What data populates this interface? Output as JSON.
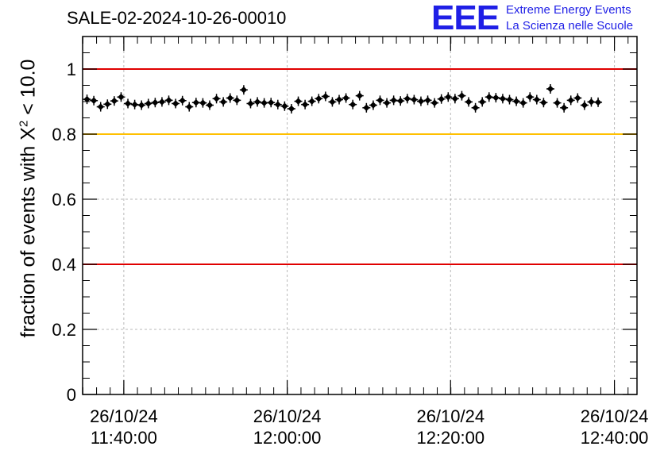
{
  "header": {
    "title": "SALE-02-2024-10-26-00010",
    "logo_acronym": "EEE",
    "logo_line1": "Extreme Energy Events",
    "logo_line2": "La Scienza nelle Scuole"
  },
  "axis": {
    "ylabel_main": "fraction of events with X",
    "ylabel_sup": "2",
    "ylabel_tail": " < 10.0"
  },
  "colors": {
    "red_line": "#e00000",
    "yellow_line": "#ffc000",
    "logo": "#1f1fe6",
    "points": "#000000"
  },
  "chart_data": {
    "type": "scatter",
    "title": "SALE-02-2024-10-26-00010",
    "ylabel": "fraction of events with X^2 < 10.0",
    "ylim": [
      0,
      1.1
    ],
    "xlim_minutes": [
      11.583,
      12.713
    ],
    "yticks": [
      0,
      0.2,
      0.4,
      0.6,
      0.8,
      1
    ],
    "ytick_labels": [
      "0",
      "0.2",
      "0.4",
      "0.6",
      "0.8",
      "1"
    ],
    "xticks": [
      {
        "t": 11.667,
        "date": "26/10/24",
        "time": "11:40:00"
      },
      {
        "t": 12.0,
        "date": "26/10/24",
        "time": "12:00:00"
      },
      {
        "t": 12.333,
        "date": "26/10/24",
        "time": "12:20:00"
      },
      {
        "t": 12.667,
        "date": "26/10/24",
        "time": "12:40:00"
      }
    ],
    "grid": true,
    "reference_lines": [
      {
        "y": 1.0,
        "color": "red"
      },
      {
        "y": 0.8,
        "color": "yellow"
      },
      {
        "y": 0.4,
        "color": "red"
      }
    ],
    "points_x_start": 11.592,
    "points_x_step": 0.01389,
    "points_y": [
      0.907,
      0.903,
      0.884,
      0.892,
      0.902,
      0.914,
      0.894,
      0.891,
      0.889,
      0.894,
      0.897,
      0.899,
      0.904,
      0.894,
      0.903,
      0.884,
      0.897,
      0.896,
      0.889,
      0.909,
      0.899,
      0.911,
      0.904,
      0.936,
      0.894,
      0.899,
      0.896,
      0.897,
      0.891,
      0.886,
      0.878,
      0.901,
      0.891,
      0.901,
      0.909,
      0.916,
      0.899,
      0.906,
      0.911,
      0.891,
      0.918,
      0.881,
      0.889,
      0.904,
      0.896,
      0.904,
      0.902,
      0.909,
      0.906,
      0.901,
      0.904,
      0.896,
      0.908,
      0.914,
      0.909,
      0.918,
      0.899,
      0.881,
      0.899,
      0.914,
      0.912,
      0.909,
      0.906,
      0.901,
      0.896,
      0.914,
      0.906,
      0.897,
      0.939,
      0.896,
      0.881,
      0.904,
      0.911,
      0.889,
      0.899,
      0.898
    ]
  }
}
